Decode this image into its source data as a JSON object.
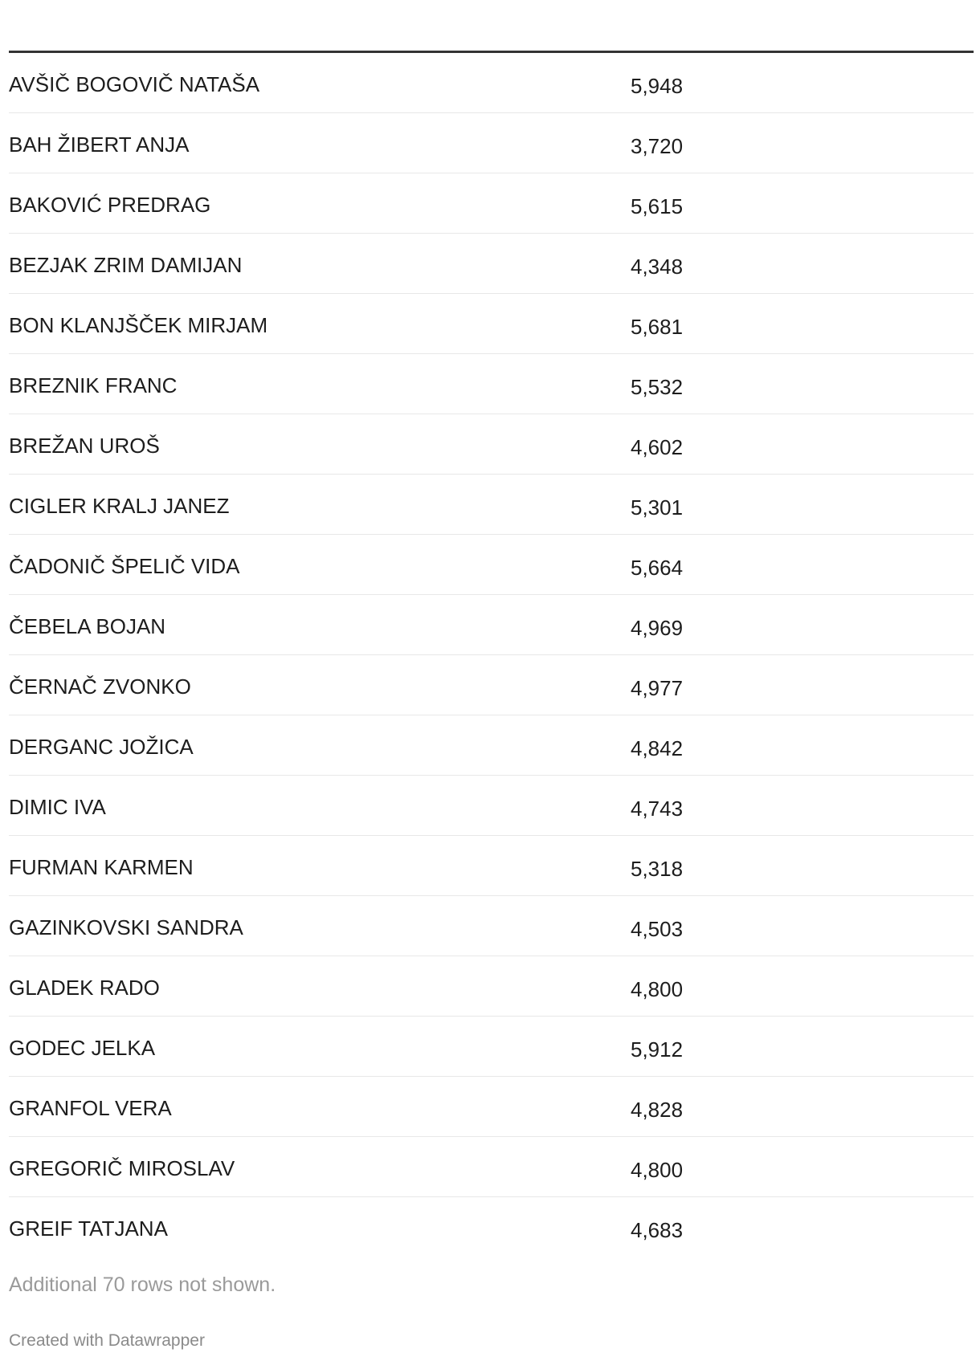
{
  "table": {
    "rows": [
      {
        "name": "AVŠIČ BOGOVIČ NATAŠA",
        "value": "5,948"
      },
      {
        "name": "BAH ŽIBERT ANJA",
        "value": "3,720"
      },
      {
        "name": "BAKOVIĆ PREDRAG",
        "value": "5,615"
      },
      {
        "name": "BEZJAK ZRIM DAMIJAN",
        "value": "4,348"
      },
      {
        "name": "BON KLANJŠČEK MIRJAM",
        "value": "5,681"
      },
      {
        "name": "BREZNIK FRANC",
        "value": "5,532"
      },
      {
        "name": "BREŽAN UROŠ",
        "value": "4,602"
      },
      {
        "name": "CIGLER KRALJ JANEZ",
        "value": "5,301"
      },
      {
        "name": "ČADONIČ ŠPELIČ VIDA",
        "value": "5,664"
      },
      {
        "name": "ČEBELA BOJAN",
        "value": "4,969"
      },
      {
        "name": "ČERNAČ ZVONKO",
        "value": "4,977"
      },
      {
        "name": "DERGANC JOŽICA",
        "value": "4,842"
      },
      {
        "name": "DIMIC IVA",
        "value": "4,743"
      },
      {
        "name": "FURMAN KARMEN",
        "value": "5,318"
      },
      {
        "name": "GAZINKOVSKI SANDRA",
        "value": "4,503"
      },
      {
        "name": "GLADEK RADO",
        "value": "4,800"
      },
      {
        "name": "GODEC JELKA",
        "value": "5,912"
      },
      {
        "name": "GRANFOL VERA",
        "value": "4,828"
      },
      {
        "name": "GREGORIČ MIROSLAV",
        "value": "4,800"
      },
      {
        "name": "GREIF TATJANA",
        "value": "4,683"
      }
    ]
  },
  "footer": {
    "note": "Additional 70 rows not shown.",
    "credit": "Created with Datawrapper"
  }
}
